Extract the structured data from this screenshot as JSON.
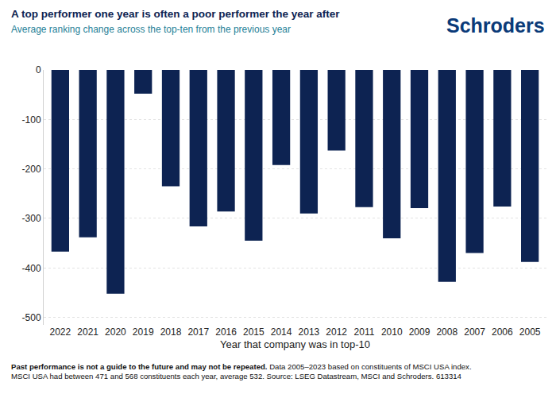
{
  "chart_data": {
    "type": "bar",
    "title": "A top performer one year is often a poor performer the year after",
    "subtitle": "Average ranking change across the top-ten from the previous year",
    "logo": "Schroders",
    "x_label": "Year that company was in top-10",
    "categories": [
      "2022",
      "2021",
      "2020",
      "2019",
      "2018",
      "2017",
      "2016",
      "2015",
      "2014",
      "2013",
      "2012",
      "2011",
      "2010",
      "2009",
      "2008",
      "2007",
      "2006",
      "2005"
    ],
    "values": [
      -367,
      -338,
      -452,
      -48,
      -235,
      -316,
      -286,
      -345,
      -192,
      -290,
      -163,
      -277,
      -340,
      -279,
      -428,
      -370,
      -276,
      -388
    ],
    "color": "#0d2352",
    "ylim": [
      -515,
      0
    ],
    "yticks": [
      0,
      -100,
      -200,
      -300,
      -400,
      -500
    ],
    "grid": true,
    "footnote": {
      "bold": "Past performance is not a guide to the future and may not be repeated.",
      "lines": [
        "Data 2005–2023 based on constituents of MSCI USA index.",
        "MSCI USA had between 471 and 568 constituents each year, average 532. Source: LSEG Datastream, MSCI and Schroders. 613314"
      ]
    }
  }
}
